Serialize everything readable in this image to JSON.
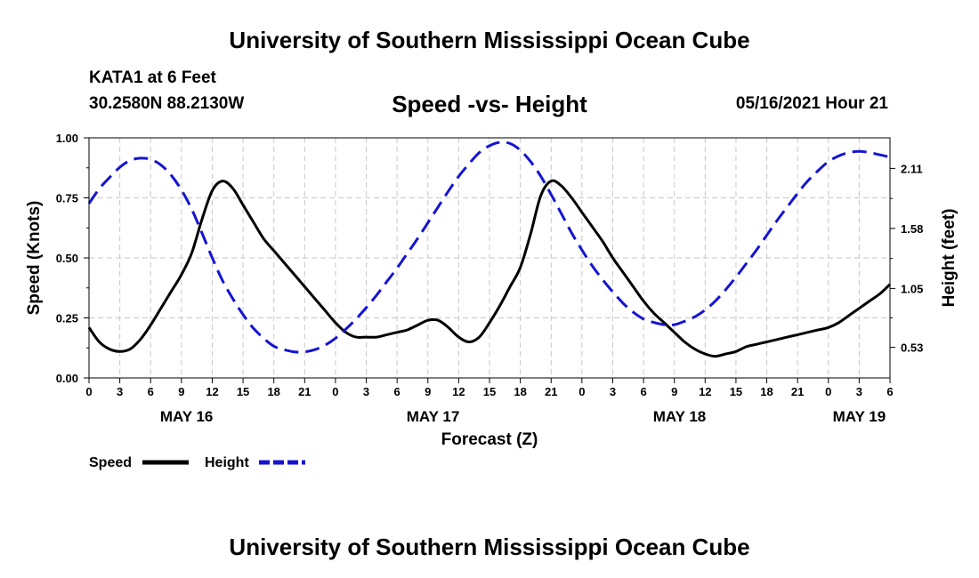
{
  "header": {
    "title": "University of Southern Mississippi Ocean Cube",
    "station": "KATA1 at 6 Feet",
    "coords": "30.2580N  88.2130W",
    "timestamp": "05/16/2021 Hour 21"
  },
  "footer": {
    "title": "University of Southern Mississippi Ocean Cube"
  },
  "chart_data": {
    "type": "line",
    "title": "Speed -vs- Height",
    "xlabel": "Forecast (Z)",
    "ylabel": "Speed (Knots)",
    "y2label": "Height (feet)",
    "grid": true,
    "xlim": [
      0,
      78
    ],
    "ylim": [
      0,
      1
    ],
    "y2lim": [
      0.26,
      2.38
    ],
    "x_tick_values": [
      0,
      3,
      6,
      9,
      12,
      15,
      18,
      21,
      24,
      27,
      30,
      33,
      36,
      39,
      42,
      45,
      48,
      51,
      54,
      57,
      60,
      63,
      66,
      69,
      72,
      75,
      78
    ],
    "x_tick_labels": [
      "0",
      "3",
      "6",
      "9",
      "12",
      "15",
      "18",
      "21",
      "0",
      "3",
      "6",
      "9",
      "12",
      "15",
      "18",
      "21",
      "0",
      "3",
      "6",
      "9",
      "12",
      "15",
      "18",
      "21",
      "0",
      "3",
      "6"
    ],
    "y_ticks": [
      0,
      0.25,
      0.5,
      0.75,
      1.0
    ],
    "y_tick_labels": [
      "0.00",
      "0.25",
      "0.50",
      "0.75",
      "1.00"
    ],
    "y2_ticks": [
      0.53,
      1.05,
      1.58,
      2.11
    ],
    "y2_tick_labels": [
      "0.53",
      "1.05",
      "1.58",
      "2.11"
    ],
    "date_labels": [
      {
        "x": 9.5,
        "label": "MAY 16"
      },
      {
        "x": 33.5,
        "label": "MAY 17"
      },
      {
        "x": 57.5,
        "label": "MAY 18"
      },
      {
        "x": 75,
        "label": "MAY 19"
      }
    ],
    "series": [
      {
        "name": "Speed",
        "axis": "left",
        "color": "#000000",
        "dash": "solid",
        "x": [
          0,
          1,
          2,
          3,
          4,
          5,
          6,
          7,
          8,
          9,
          10,
          11,
          12,
          13,
          14,
          15,
          16,
          17,
          18,
          19,
          20,
          21,
          22,
          23,
          24,
          25,
          26,
          27,
          28,
          29,
          30,
          31,
          32,
          33,
          34,
          35,
          36,
          37,
          38,
          39,
          40,
          41,
          42,
          43,
          44,
          45,
          46,
          47,
          48,
          49,
          50,
          51,
          52,
          53,
          54,
          55,
          56,
          57,
          58,
          59,
          60,
          61,
          62,
          63,
          64,
          65,
          66,
          67,
          68,
          69,
          70,
          71,
          72,
          73,
          74,
          75,
          76,
          77,
          78
        ],
        "values": [
          0.21,
          0.15,
          0.12,
          0.11,
          0.12,
          0.16,
          0.22,
          0.29,
          0.36,
          0.43,
          0.52,
          0.66,
          0.78,
          0.82,
          0.79,
          0.72,
          0.65,
          0.58,
          0.53,
          0.48,
          0.43,
          0.38,
          0.33,
          0.28,
          0.23,
          0.19,
          0.17,
          0.17,
          0.17,
          0.18,
          0.19,
          0.2,
          0.22,
          0.24,
          0.24,
          0.21,
          0.17,
          0.15,
          0.17,
          0.23,
          0.3,
          0.38,
          0.46,
          0.6,
          0.76,
          0.82,
          0.8,
          0.75,
          0.69,
          0.63,
          0.57,
          0.5,
          0.44,
          0.38,
          0.32,
          0.27,
          0.23,
          0.19,
          0.15,
          0.12,
          0.1,
          0.09,
          0.1,
          0.11,
          0.13,
          0.14,
          0.15,
          0.16,
          0.17,
          0.18,
          0.19,
          0.2,
          0.21,
          0.23,
          0.26,
          0.29,
          0.32,
          0.35,
          0.39
        ]
      },
      {
        "name": "Height",
        "axis": "right",
        "color": "#1414d2",
        "dash": "dashed",
        "x": [
          0,
          1,
          2,
          3,
          4,
          5,
          6,
          7,
          8,
          9,
          10,
          11,
          12,
          13,
          14,
          15,
          16,
          17,
          18,
          19,
          20,
          21,
          22,
          23,
          24,
          25,
          26,
          27,
          28,
          29,
          30,
          31,
          32,
          33,
          34,
          35,
          36,
          37,
          38,
          39,
          40,
          41,
          42,
          43,
          44,
          45,
          46,
          47,
          48,
          49,
          50,
          51,
          52,
          53,
          54,
          55,
          56,
          57,
          58,
          59,
          60,
          61,
          62,
          63,
          64,
          65,
          66,
          67,
          68,
          69,
          70,
          71,
          72,
          73,
          74,
          75,
          76,
          77,
          78
        ],
        "values": [
          1.8,
          1.93,
          2.03,
          2.12,
          2.18,
          2.2,
          2.19,
          2.14,
          2.05,
          1.92,
          1.75,
          1.54,
          1.32,
          1.12,
          0.96,
          0.82,
          0.7,
          0.61,
          0.54,
          0.51,
          0.49,
          0.49,
          0.51,
          0.55,
          0.61,
          0.69,
          0.78,
          0.88,
          0.99,
          1.11,
          1.23,
          1.36,
          1.49,
          1.63,
          1.77,
          1.91,
          2.04,
          2.15,
          2.25,
          2.31,
          2.34,
          2.33,
          2.27,
          2.17,
          2.04,
          1.88,
          1.71,
          1.54,
          1.39,
          1.25,
          1.13,
          1.02,
          0.92,
          0.84,
          0.78,
          0.75,
          0.73,
          0.73,
          0.76,
          0.8,
          0.86,
          0.94,
          1.04,
          1.15,
          1.27,
          1.39,
          1.52,
          1.65,
          1.77,
          1.89,
          2.0,
          2.09,
          2.17,
          2.22,
          2.25,
          2.26,
          2.25,
          2.23,
          2.21
        ]
      }
    ]
  },
  "legend": {
    "speed_label": "Speed",
    "height_label": "Height"
  }
}
